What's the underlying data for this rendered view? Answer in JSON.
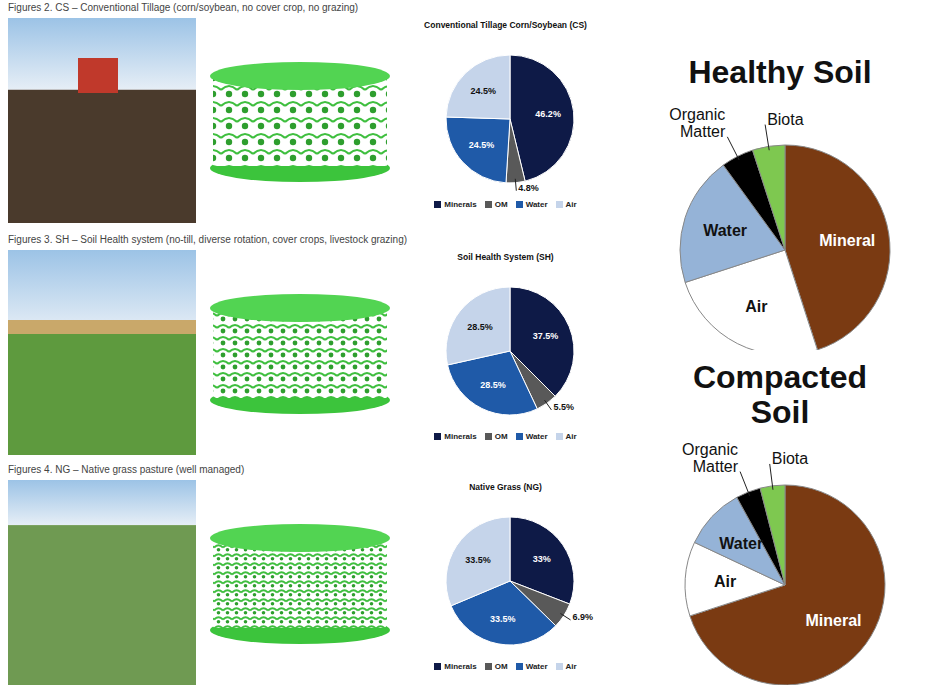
{
  "chart_data": [
    {
      "type": "pie",
      "caption": "Figures 2. CS – Conventional Tillage (corn/soybean, no cover crop, no grazing)",
      "title": "Conventional Tillage Corn/Soybean (CS)",
      "categories": [
        "Minerals",
        "OM",
        "Water",
        "Air"
      ],
      "values": [
        46.2,
        4.8,
        24.5,
        24.5
      ],
      "value_labels": [
        "46.2%",
        "4.8%",
        "24.5%",
        "24.5%"
      ],
      "colors": [
        "#0e1a47",
        "#595959",
        "#1f5aa8",
        "#c5d4ea"
      ],
      "data_labels": true,
      "legend": "bottom"
    },
    {
      "type": "pie",
      "caption": "Figures 3. SH – Soil Health system (no-till, diverse rotation, cover crops, livestock grazing)",
      "title": "Soil Health System (SH)",
      "categories": [
        "Minerals",
        "OM",
        "Water",
        "Air"
      ],
      "values": [
        37.5,
        5.5,
        28.5,
        28.5
      ],
      "value_labels": [
        "37.5%",
        "5.5%",
        "28.5%",
        "28.5%"
      ],
      "colors": [
        "#0e1a47",
        "#595959",
        "#1f5aa8",
        "#c5d4ea"
      ],
      "data_labels": true,
      "legend": "bottom"
    },
    {
      "type": "pie",
      "caption": "Figures 4. NG – Native grass pasture (well managed)",
      "title": "Native Grass (NG)",
      "categories": [
        "Minerals",
        "OM",
        "Water",
        "Air"
      ],
      "values": [
        33,
        6.9,
        33.5,
        33.5
      ],
      "value_labels": [
        "33%",
        "6.9%",
        "33.5%",
        "33.5%"
      ],
      "colors": [
        "#0e1a47",
        "#595959",
        "#1f5aa8",
        "#c5d4ea"
      ],
      "data_labels": true,
      "legend": "bottom"
    },
    {
      "type": "pie",
      "title": "Healthy Soil",
      "categories": [
        "Mineral",
        "Air",
        "Water",
        "Organic Matter",
        "Biota"
      ],
      "values": [
        45,
        25,
        20,
        5,
        5
      ],
      "colors": [
        "#7a3a12",
        "#ffffff",
        "#95b3d7",
        "#000000",
        "#7ec850"
      ],
      "data_labels": false
    },
    {
      "type": "pie",
      "title": "Compacted Soil",
      "categories": [
        "Mineral",
        "Air",
        "Water",
        "Organic Matter",
        "Biota"
      ],
      "values": [
        70,
        12,
        10,
        4,
        4
      ],
      "colors": [
        "#7a3a12",
        "#ffffff",
        "#95b3d7",
        "#000000",
        "#7ec850"
      ],
      "data_labels": false
    }
  ]
}
